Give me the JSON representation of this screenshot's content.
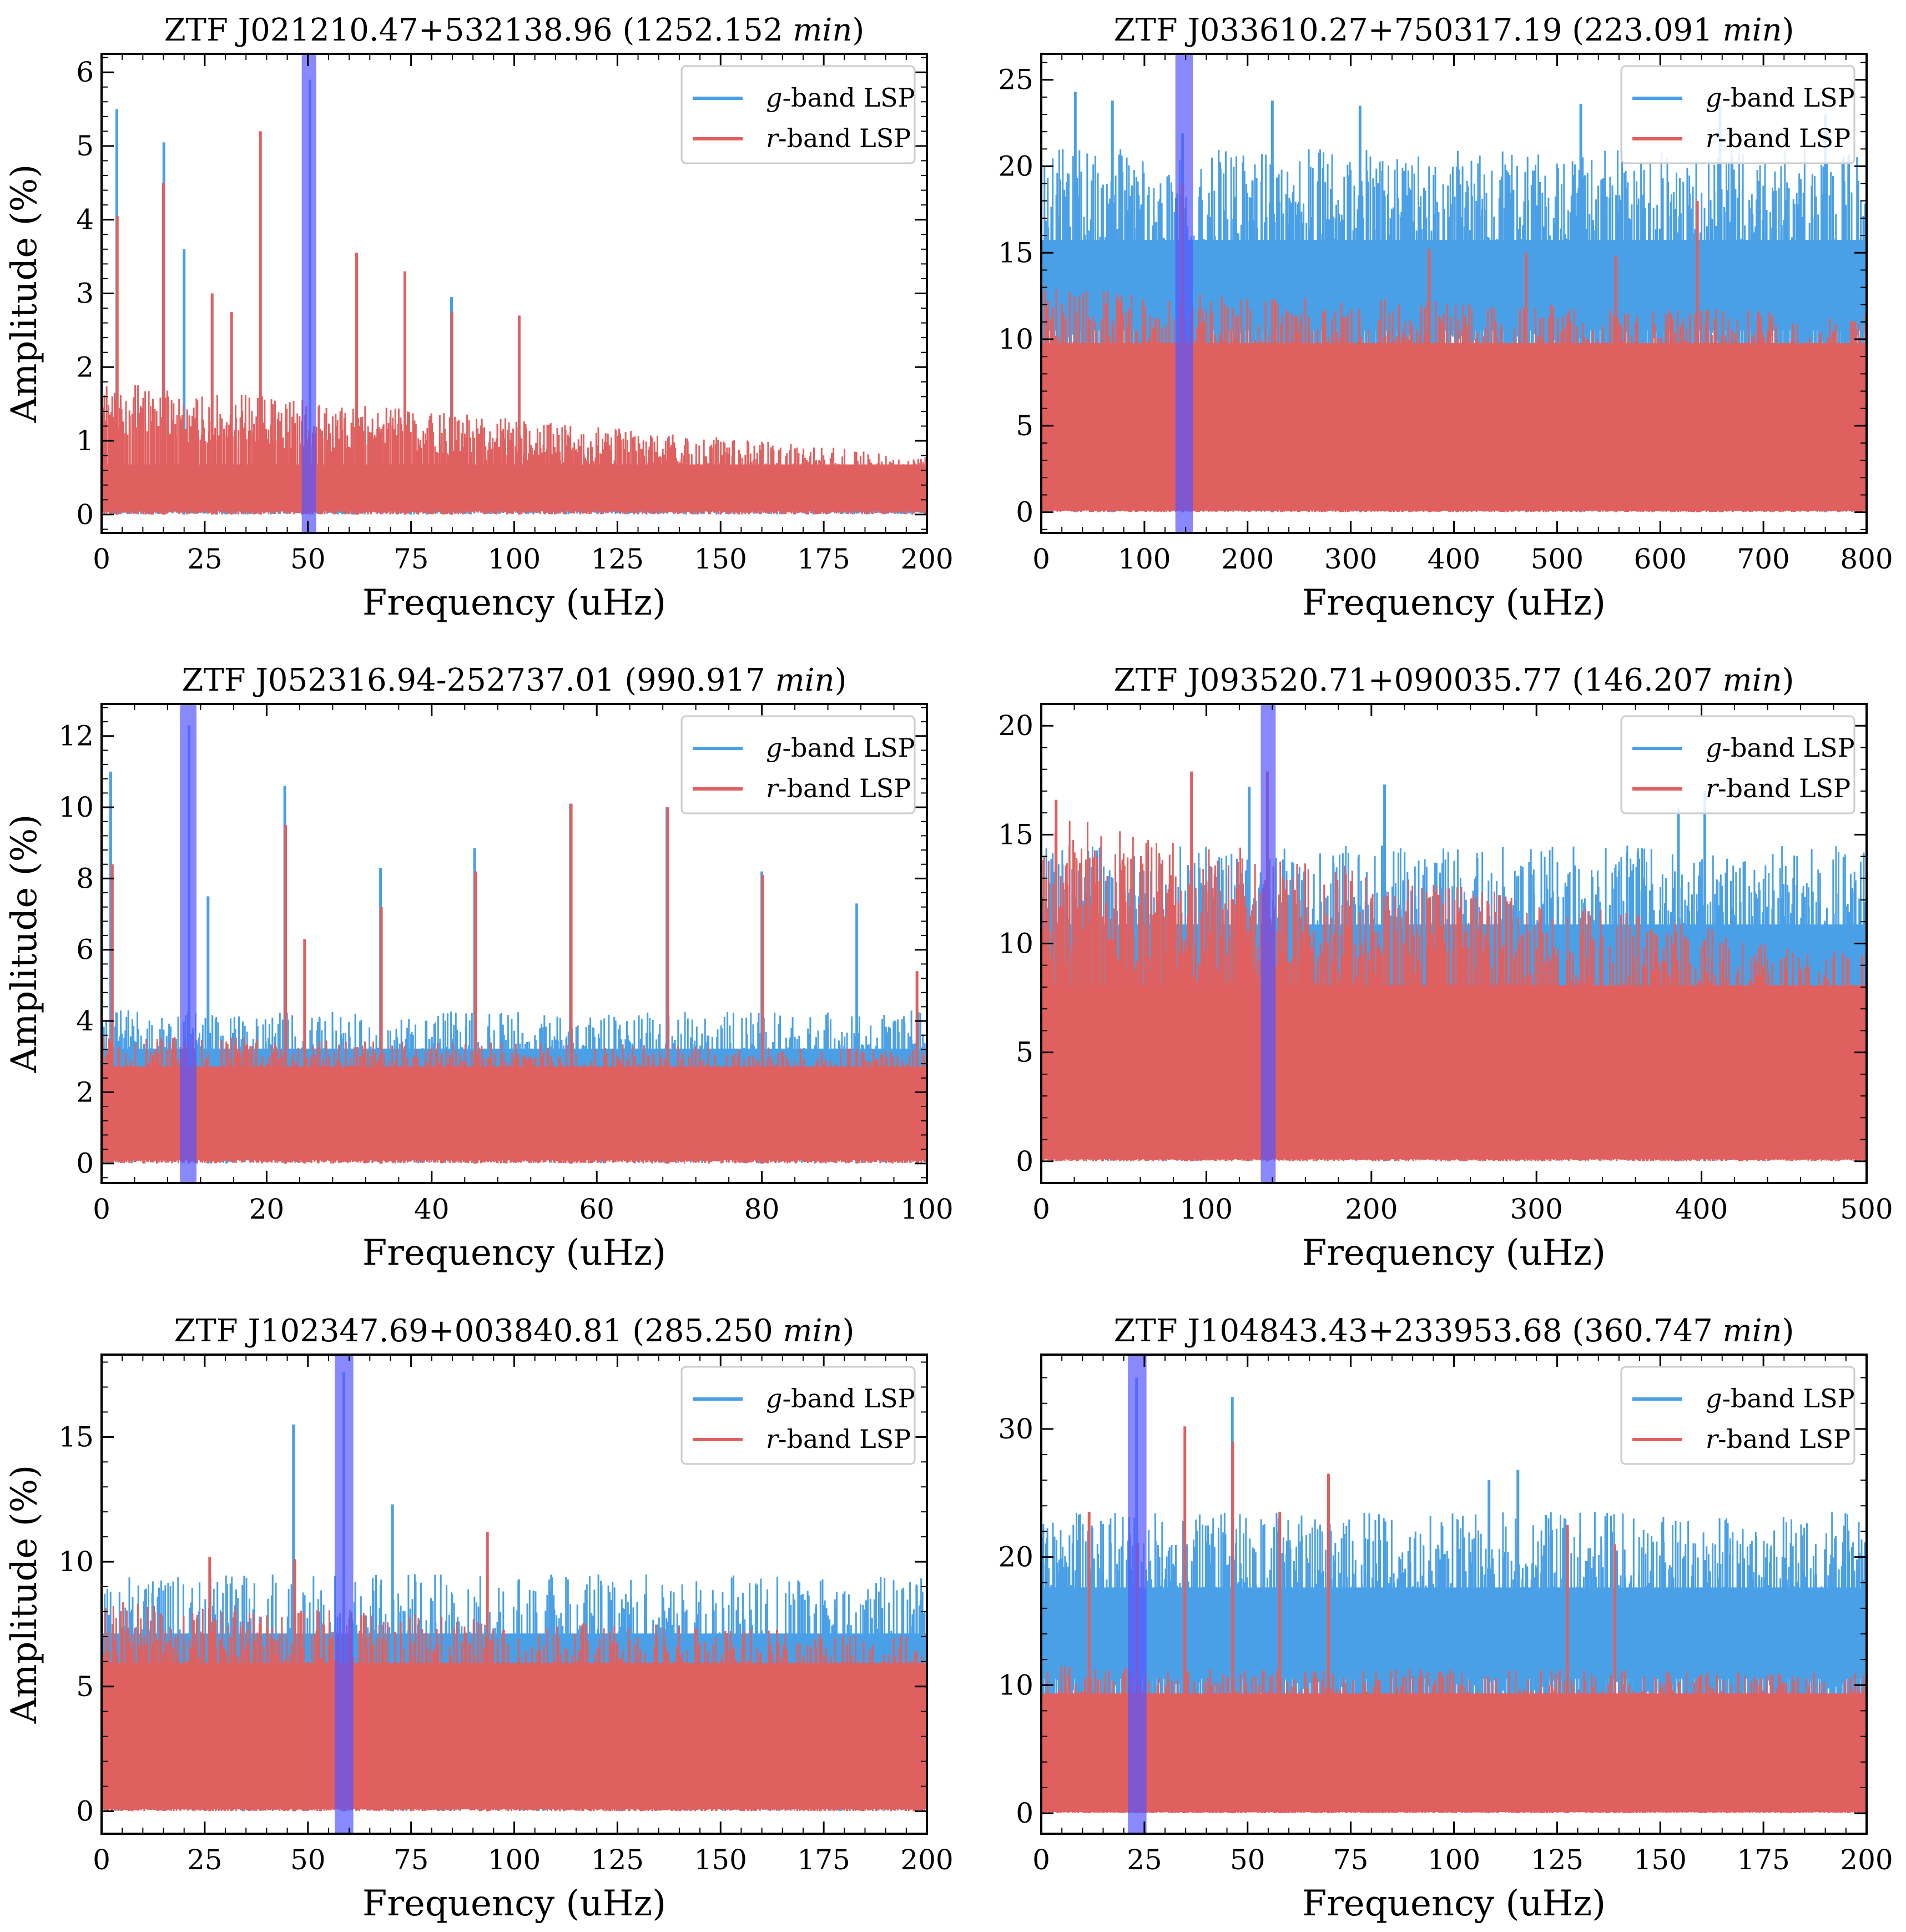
{
  "figure": {
    "legend_placement": "top-right",
    "colors": {
      "g_band": "#4aa0e6",
      "r_band": "#e06060",
      "highlight": "#5555ff"
    }
  },
  "chart_data": [
    {
      "type": "line",
      "title_object": "ZTF J021210.47+532138.96",
      "title_period": "(1252.152",
      "title_unit": "min",
      "title_close": ")",
      "xlabel": "Frequency (uHz)",
      "ylabel": "Amplitude (%)",
      "xlim": [
        0,
        200
      ],
      "ylim": [
        -0.25,
        6.25
      ],
      "xticks": [
        0,
        25,
        50,
        75,
        100,
        125,
        150,
        175,
        200
      ],
      "yticks": [
        0,
        1,
        2,
        3,
        4,
        5,
        6
      ],
      "highlight_band": [
        48.5,
        52.0
      ],
      "legend": {
        "g": "g",
        "g_suffix": "-band LSP",
        "r": "r",
        "r_suffix": "-band LSP"
      },
      "series": [
        {
          "name": "g-band LSP",
          "color": "#4aa0e6",
          "noise_floor": 0.05,
          "noise_top": 0.35,
          "peaks": [
            [
              3.7,
              5.5
            ],
            [
              15.1,
              5.05
            ],
            [
              20.0,
              3.6
            ],
            [
              50.5,
              5.9
            ],
            [
              84.8,
              2.95
            ]
          ]
        },
        {
          "name": "r-band LSP",
          "color": "#e06060",
          "noise_floor": 0.05,
          "noise_top_start": 1.8,
          "noise_top_end": 0.8,
          "peaks": [
            [
              3.8,
              4.05
            ],
            [
              15.0,
              4.5
            ],
            [
              26.8,
              3.0
            ],
            [
              31.5,
              2.75
            ],
            [
              38.5,
              5.2
            ],
            [
              61.8,
              3.55
            ],
            [
              73.5,
              3.3
            ],
            [
              84.9,
              2.75
            ],
            [
              101.2,
              2.7
            ]
          ]
        }
      ]
    },
    {
      "type": "line",
      "title_object": "ZTF J033610.27+750317.19",
      "title_period": "(223.091",
      "title_unit": "min",
      "title_close": ")",
      "xlabel": "Frequency (uHz)",
      "ylabel": "",
      "xlim": [
        0,
        800
      ],
      "ylim": [
        -1.2,
        26.5
      ],
      "xticks": [
        0,
        100,
        200,
        300,
        400,
        500,
        600,
        700,
        800
      ],
      "yticks": [
        0,
        5,
        10,
        15,
        20,
        25
      ],
      "highlight_band": [
        130,
        147
      ],
      "legend": {
        "g": "g",
        "g_suffix": "-band LSP",
        "r": "r",
        "r_suffix": "-band LSP"
      },
      "series": [
        {
          "name": "g-band LSP",
          "color": "#4aa0e6",
          "noise_floor": 10.5,
          "noise_top": 21.0,
          "peaks": [
            [
              33,
              24.3
            ],
            [
              69,
              23.8
            ],
            [
              137,
              21.9
            ],
            [
              224,
              23.8
            ],
            [
              309,
              23.5
            ],
            [
              523,
              23.6
            ],
            [
              658,
              23.5
            ],
            [
              760,
              23.0
            ]
          ]
        },
        {
          "name": "r-band LSP",
          "color": "#e06060",
          "noise_floor": 0.1,
          "noise_top_start": 13.0,
          "noise_top_end": 11.5,
          "peaks": [
            [
              137,
              19.0
            ],
            [
              376,
              15.2
            ],
            [
              470,
              15.0
            ],
            [
              557,
              14.8
            ],
            [
              636,
              18.0
            ]
          ]
        }
      ]
    },
    {
      "type": "line",
      "title_object": "ZTF J052316.94-252737.01",
      "title_period": "(990.917",
      "title_unit": "min",
      "title_close": ")",
      "xlabel": "Frequency (uHz)",
      "ylabel": "Amplitude (%)",
      "xlim": [
        0,
        100
      ],
      "ylim": [
        -0.55,
        12.9
      ],
      "xticks": [
        0,
        20,
        40,
        60,
        80,
        100
      ],
      "yticks": [
        0,
        2,
        4,
        6,
        8,
        10,
        12
      ],
      "highlight_band": [
        9.5,
        11.5
      ],
      "legend": {
        "g": "g",
        "g_suffix": "-band LSP",
        "r": "r",
        "r_suffix": "-band LSP"
      },
      "series": [
        {
          "name": "g-band LSP",
          "color": "#4aa0e6",
          "noise_floor": 0.3,
          "noise_top": 4.3,
          "peaks": [
            [
              1.1,
              11.0
            ],
            [
              10.6,
              12.3
            ],
            [
              12.9,
              7.5
            ],
            [
              22.2,
              10.6
            ],
            [
              33.8,
              8.3
            ],
            [
              45.2,
              8.85
            ],
            [
              56.8,
              10.1
            ],
            [
              68.5,
              10.0
            ],
            [
              80.0,
              8.2
            ],
            [
              91.5,
              7.3
            ]
          ]
        },
        {
          "name": "r-band LSP",
          "color": "#e06060",
          "noise_floor": 0.1,
          "noise_top_start": 3.6,
          "noise_top_end": 3.2,
          "peaks": [
            [
              1.3,
              8.4
            ],
            [
              22.3,
              9.5
            ],
            [
              24.6,
              6.3
            ],
            [
              33.9,
              7.2
            ],
            [
              45.3,
              8.2
            ],
            [
              56.9,
              10.1
            ],
            [
              68.6,
              10.0
            ],
            [
              80.1,
              8.1
            ],
            [
              98.8,
              5.4
            ]
          ]
        }
      ]
    },
    {
      "type": "line",
      "title_object": "ZTF J093520.71+090035.77",
      "title_period": "(146.207",
      "title_unit": "min",
      "title_close": ")",
      "xlabel": "Frequency (uHz)",
      "ylabel": "",
      "xlim": [
        0,
        500
      ],
      "ylim": [
        -1.0,
        21.0
      ],
      "xticks": [
        0,
        100,
        200,
        300,
        400,
        500
      ],
      "yticks": [
        0,
        5,
        10,
        15,
        20
      ],
      "highlight_band": [
        133,
        142
      ],
      "legend": {
        "g": "g",
        "g_suffix": "-band LSP",
        "r": "r",
        "r_suffix": "-band LSP"
      },
      "series": [
        {
          "name": "g-band LSP",
          "color": "#4aa0e6",
          "noise_floor": 5.5,
          "noise_top": 14.5,
          "peaks": [
            [
              126,
              17.2
            ],
            [
              208,
              17.3
            ],
            [
              386,
              16.2
            ],
            [
              402,
              17.0
            ]
          ]
        },
        {
          "name": "r-band LSP",
          "color": "#e06060",
          "noise_floor": 0.1,
          "noise_top_start": 16.0,
          "noise_top_end": 9.5,
          "peaks": [
            [
              91,
              17.9
            ],
            [
              137,
              17.9
            ],
            [
              9,
              16.6
            ]
          ]
        }
      ]
    },
    {
      "type": "line",
      "title_object": "ZTF J102347.69+003840.81",
      "title_period": "(285.250",
      "title_unit": "min",
      "title_close": ")",
      "xlabel": "Frequency (uHz)",
      "ylabel": "Amplitude (%)",
      "xlim": [
        0,
        200
      ],
      "ylim": [
        -0.9,
        18.3
      ],
      "xticks": [
        0,
        25,
        50,
        75,
        100,
        125,
        150,
        175,
        200
      ],
      "yticks": [
        0,
        5,
        10,
        15
      ],
      "highlight_band": [
        56.5,
        61.0
      ],
      "legend": {
        "g": "g",
        "g_suffix": "-band LSP",
        "r": "r",
        "r_suffix": "-band LSP"
      },
      "series": [
        {
          "name": "g-band LSP",
          "color": "#4aa0e6",
          "noise_floor": 0.4,
          "noise_top": 9.5,
          "peaks": [
            [
              46.5,
              15.5
            ],
            [
              58.7,
              17.6
            ],
            [
              70.5,
              12.3
            ]
          ]
        },
        {
          "name": "r-band LSP",
          "color": "#e06060",
          "noise_floor": 0.1,
          "noise_top_start": 8.5,
          "noise_top_end": 7.0,
          "peaks": [
            [
              93.5,
              11.2
            ],
            [
              26.2,
              10.2
            ],
            [
              46.8,
              10.1
            ]
          ]
        }
      ]
    },
    {
      "type": "line",
      "title_object": "ZTF J104843.43+233953.68",
      "title_period": "(360.747",
      "title_unit": "min",
      "title_close": ")",
      "xlabel": "Frequency (uHz)",
      "ylabel": "",
      "xlim": [
        0,
        200
      ],
      "ylim": [
        -1.6,
        35.8
      ],
      "xticks": [
        0,
        25,
        50,
        75,
        100,
        125,
        150,
        175,
        200
      ],
      "yticks": [
        0,
        10,
        20,
        30
      ],
      "highlight_band": [
        21.0,
        25.5
      ],
      "legend": {
        "g": "g",
        "g_suffix": "-band LSP",
        "r": "r",
        "r_suffix": "-band LSP"
      },
      "series": [
        {
          "name": "g-band LSP",
          "color": "#4aa0e6",
          "noise_floor": 10.5,
          "noise_top": 23.5,
          "peaks": [
            [
              23.1,
              34.0
            ],
            [
              46.3,
              32.5
            ],
            [
              115.5,
              26.8
            ],
            [
              108.5,
              26.0
            ]
          ]
        },
        {
          "name": "r-band LSP",
          "color": "#e06060",
          "noise_floor": 0.1,
          "noise_top_start": 11.5,
          "noise_top_end": 11.0,
          "peaks": [
            [
              34.8,
              30.2
            ],
            [
              46.4,
              29.0
            ],
            [
              69.6,
              26.5
            ],
            [
              11.6,
              23.5
            ],
            [
              57.8,
              23.5
            ],
            [
              127.5,
              22.5
            ],
            [
              139.0,
              21.0
            ],
            [
              23.2,
              21.0
            ]
          ]
        }
      ]
    }
  ]
}
